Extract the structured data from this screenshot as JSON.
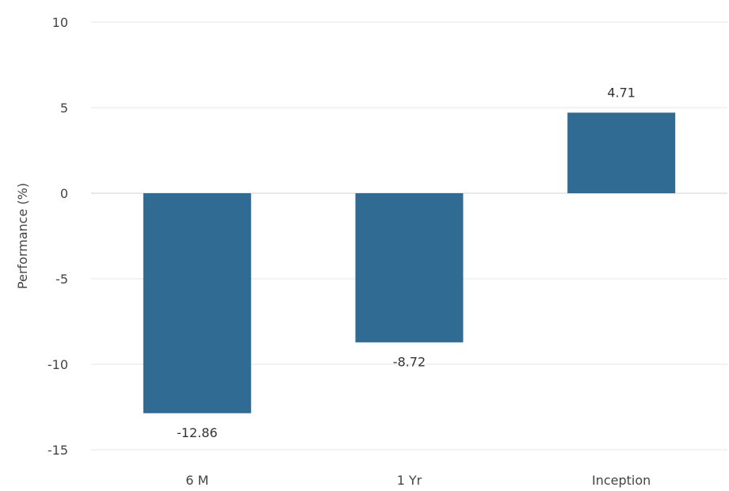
{
  "chart_data": {
    "type": "bar",
    "title": "",
    "xlabel": "",
    "ylabel": "Performance (%)",
    "categories": [
      "6 M",
      "1 Yr",
      "Inception"
    ],
    "values": [
      -12.86,
      -8.72,
      4.71
    ],
    "data_labels": [
      "-12.86",
      "-8.72",
      "4.71"
    ],
    "ylim": [
      -15,
      10
    ],
    "yticks": [
      10,
      5,
      0,
      -5,
      -10,
      -15
    ],
    "ytick_labels": [
      "10",
      "5",
      "0",
      "-5",
      "-10",
      "-15"
    ],
    "grid": true,
    "legend": "none",
    "bar_color": "#2f6b93"
  }
}
